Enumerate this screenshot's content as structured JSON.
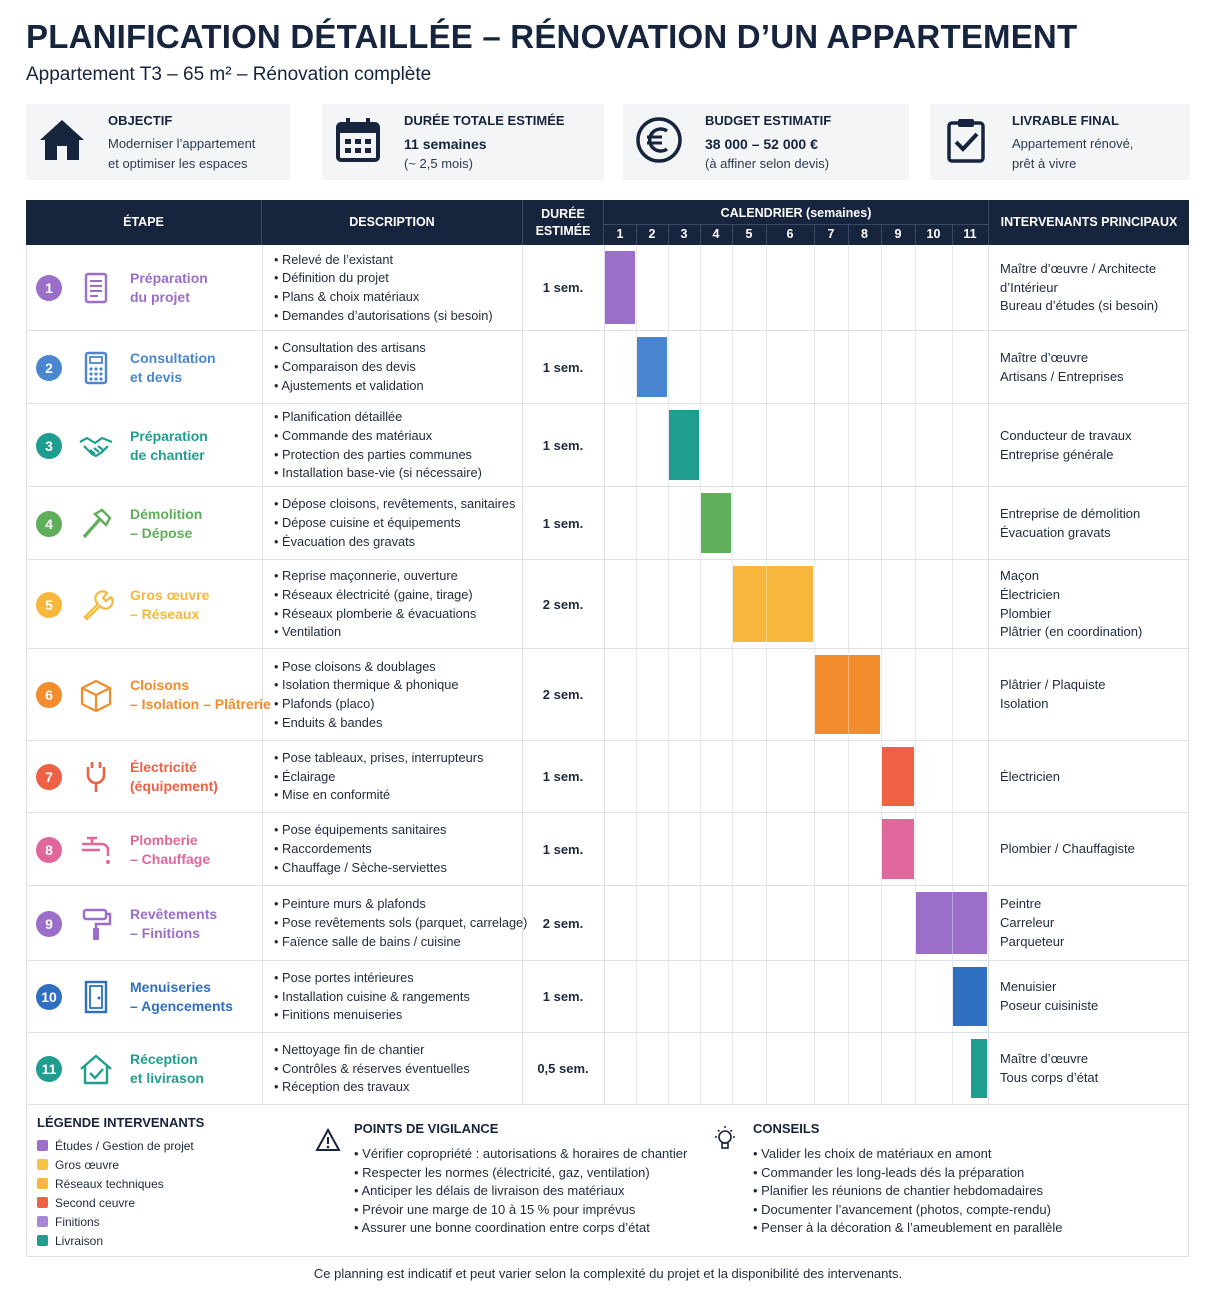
{
  "header": {
    "title": "PLANIFICATION DÉTAILLÉE – RÉNOVATION D’UN APPARTEMENT",
    "subtitle": "Appartement T3 – 65 m² – Rénovation complète"
  },
  "cards": [
    {
      "icon": "house-icon",
      "label": "OBJECTIF",
      "line1": "Moderniser l’appartement",
      "line2": "et optimiser les espaces"
    },
    {
      "icon": "calendar-icon",
      "label": "DURÉE TOTALE ESTIMÉE",
      "line1": "11 semaines",
      "line2": "(~ 2,5 mois)"
    },
    {
      "icon": "euro-icon",
      "label": "BUDGET ESTIMATIF",
      "line1": "38 000 – 52 000 €",
      "line2": "(à affiner selon devis)"
    },
    {
      "icon": "clipboard-check-icon",
      "label": "LIVRABLE FINAL",
      "line1": "Appartement rénové,",
      "line2": "prêt à vivre"
    }
  ],
  "table": {
    "headers": {
      "step": "ÉTAPE",
      "description": "DESCRIPTION",
      "duration": "DURÉE ESTIMÉE",
      "calendar": "CALENDRIER (semaines)",
      "contractors": "INTERVENANTS PRINCIPAUX"
    },
    "weeks": [
      "1",
      "2",
      "3",
      "4",
      "5",
      "6",
      "7",
      "8",
      "9",
      "10",
      "11"
    ],
    "rows": [
      {
        "num": "1",
        "color": "#9b6fc9",
        "icon": "document-icon",
        "name": [
          "Préparation",
          "du projet"
        ],
        "desc": [
          "Relevé de l’existant",
          "Définition du projet",
          "Plans & choix matériaux",
          "Demandes d’autorisations (si besoin)"
        ],
        "duration": "1 sem.",
        "start": 1,
        "weeks": 1,
        "contractors": [
          "Maître d’œuvre / Architecte",
          "d’Intérieur",
          "Bureau d’études (si besoin)"
        ]
      },
      {
        "num": "2",
        "color": "#4a86d0",
        "icon": "calculator-icon",
        "name": [
          "Consultation",
          "et devis"
        ],
        "desc": [
          "Consultation des artisans",
          "Comparaison des devis",
          "Ajustements et validation"
        ],
        "duration": "1 sem.",
        "start": 2,
        "weeks": 1,
        "contractors": [
          "Maître d’œuvre",
          "Artisans / Entreprises"
        ]
      },
      {
        "num": "3",
        "color": "#1f9e8f",
        "icon": "handshake-icon",
        "name": [
          "Préparation",
          "de chantier"
        ],
        "desc": [
          "Planification détaillée",
          "Commande des matériaux",
          "Protection des parties communes",
          "Installation base-vie (si nécessaire)"
        ],
        "duration": "1 sem.",
        "start": 3,
        "weeks": 1,
        "contractors": [
          "Conducteur de travaux",
          "Entreprise générale"
        ]
      },
      {
        "num": "4",
        "color": "#5fae5a",
        "icon": "hammer-icon",
        "name": [
          "Démolition",
          "– Dépose"
        ],
        "desc": [
          "Dépose cloisons, revêtements, sanitaires",
          "Dépose cuisine et équipements",
          "Évacuation des gravats"
        ],
        "duration": "1 sem.",
        "start": 4,
        "weeks": 1,
        "contractors": [
          "Entreprise de démolition",
          "Évacuation gravats"
        ]
      },
      {
        "num": "5",
        "color": "#f6b73c",
        "icon": "wrench-icon",
        "name": [
          "Gros œuvre",
          "– Réseaux"
        ],
        "desc": [
          "Reprise maçonnerie, ouverture",
          "Réseaux électricité (gaine, tirage)",
          "Réseaux plomberie & évacuations",
          "Ventilation"
        ],
        "duration": "2 sem.",
        "start": 5,
        "weeks": 2,
        "contractors": [
          "Maçon",
          "Électricien",
          "Plombier",
          "Plâtrier (en coordination)"
        ]
      },
      {
        "num": "6",
        "color": "#f28c2c",
        "icon": "box-icon",
        "name": [
          "Cloisons",
          "– Isolation – Plâtrerie"
        ],
        "desc": [
          "Pose cloisons & doublages",
          "Isolation thermique & phonique",
          "Plafonds (placo)",
          "Enduits & bandes"
        ],
        "duration": "2 sem.",
        "start": 7,
        "weeks": 2,
        "contractors": [
          "Plâtrier / Plaquiste",
          "Isolation"
        ]
      },
      {
        "num": "7",
        "color": "#ee6145",
        "icon": "plug-icon",
        "name": [
          "Électricité",
          "(équipement)"
        ],
        "desc": [
          "Pose tableaux, prises, interrupteurs",
          "Éclairage",
          "Mise en conformité"
        ],
        "duration": "1 sem.",
        "start": 9,
        "weeks": 1,
        "contractors": [
          "Électricien"
        ]
      },
      {
        "num": "8",
        "color": "#e0679b",
        "icon": "faucet-icon",
        "name": [
          "Plomberie",
          "– Chauffage"
        ],
        "desc": [
          "Pose équipements sanitaires",
          "Raccordements",
          "Chauffage / Sèche-serviettes"
        ],
        "duration": "1 sem.",
        "start": 9,
        "weeks": 1,
        "contractors": [
          "Plombier / Chauffagiste"
        ]
      },
      {
        "num": "9",
        "color": "#9b6fc9",
        "icon": "paint-roller-icon",
        "name": [
          "Revêtements",
          "– Finitions"
        ],
        "desc": [
          "Peinture murs & plafonds",
          "Pose revêtements sols (parquet, carrelage)",
          "Faïence salle de bains / cuisine"
        ],
        "duration": "2 sem.",
        "start": 10,
        "weeks": 2,
        "contractors": [
          "Peintre",
          "Carreleur",
          "Parqueteur"
        ]
      },
      {
        "num": "10",
        "color": "#2f6fc1",
        "icon": "door-icon",
        "name": [
          "Menuiseries",
          "– Agencements"
        ],
        "desc": [
          "Pose portes intérieures",
          "Installation cuisine & rangements",
          "Finitions menuiseries"
        ],
        "duration": "1 sem.",
        "start": 11,
        "weeks": 1,
        "contractors": [
          "Menuisier",
          "Poseur cuisiniste"
        ]
      },
      {
        "num": "11",
        "color": "#1f9e8f",
        "icon": "home-check-icon",
        "name": [
          "Réception",
          "et livirason"
        ],
        "desc": [
          "Nettoyage fin de chantier",
          "Contrôles & réserves éventuelles",
          "Réception des travaux"
        ],
        "duration": "0,5 sem.",
        "start": 11.5,
        "weeks": 0.5,
        "contractors": [
          "Maître d’œuvre",
          "Tous corps d’état"
        ]
      }
    ]
  },
  "legend": {
    "title": "LÉGENDE INTERVENANTS",
    "items": [
      {
        "label": "Études / Gestion de projet",
        "color": "#9b6fc9"
      },
      {
        "label": "Gros œuvre",
        "color": "#f6c443"
      },
      {
        "label": "Réseaux techniques",
        "color": "#f6b73c"
      },
      {
        "label": "Second ceuvre",
        "color": "#ee6145"
      },
      {
        "label": "Finitions",
        "color": "#a886d6"
      },
      {
        "label": "Livraison",
        "color": "#1f9e8f"
      }
    ]
  },
  "vigilance": {
    "icon": "warning-icon",
    "title": "POINTS DE VIGILANCE",
    "items": [
      "Vérifier copropriété : autorisations & horaires de chantier",
      "Respecter les normes (électricité, gaz, ventilation)",
      "Anticiper les délais de livraison des matériaux",
      "Prévoir une marge de 10 à 15 % pour imprévus",
      "Assurer une bonne coordination entre corps d’état"
    ]
  },
  "tips": {
    "icon": "lightbulb-icon",
    "title": "CONSEILS",
    "items": [
      "Valider les choix de matériaux en amont",
      "Commander les long-leads dés la préparation",
      "Planifier les réunions de chantier hebdomadaires",
      "Documenter l’avancement (photos, compte-rendu)",
      "Penser à la décoration & l’ameublement en parallèle"
    ]
  },
  "note": "Ce planning est indicatif et peut varier selon la complexité du projet et la disponibilité des intervenants."
}
